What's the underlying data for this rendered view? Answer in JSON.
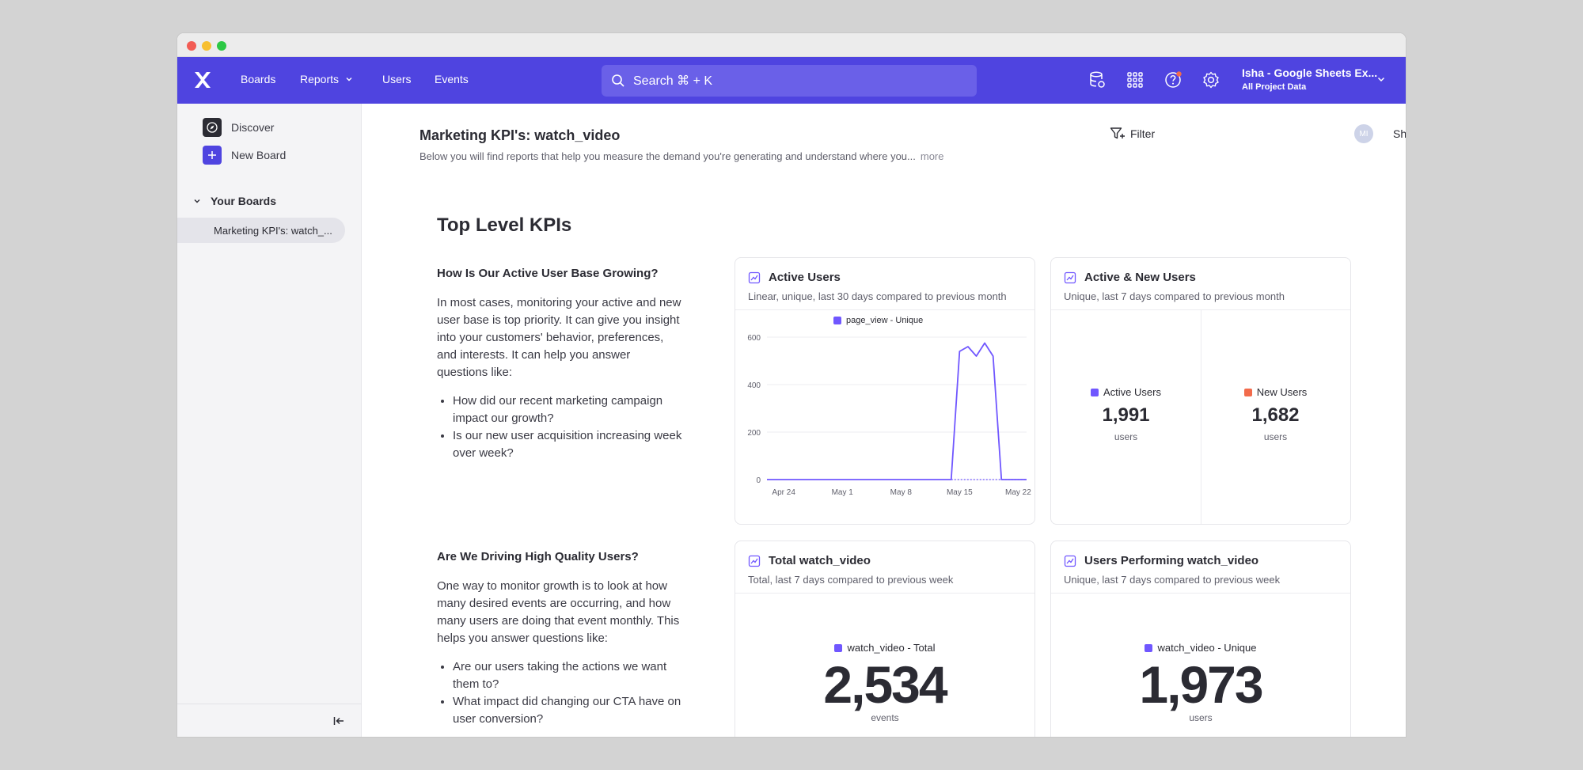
{
  "colors": {
    "brand": "#4f44e0",
    "series_purple": "#7057ff",
    "series_orange": "#f26b4b"
  },
  "nav": {
    "items": [
      {
        "label": "Boards"
      },
      {
        "label": "Reports"
      },
      {
        "label": "Users"
      },
      {
        "label": "Events"
      }
    ],
    "search_placeholder": "Search ⌘ + K",
    "project_name": "Isha - Google Sheets Ex...",
    "project_sub": "All Project Data"
  },
  "sidebar": {
    "discover": "Discover",
    "new_board": "New Board",
    "section": "Your Boards",
    "board_item": "Marketing KPI's: watch_..."
  },
  "board": {
    "title": "Marketing KPI's: watch_video",
    "description": "Below you will find reports that help you measure the demand you're generating and understand where you...",
    "more": "more",
    "filter": "Filter",
    "avatar_initials": "MI",
    "share": "Share"
  },
  "section_title": "Top Level KPIs",
  "text_blocks": [
    {
      "heading": "How Is Our Active User Base Growing?",
      "paragraph": "In most cases, monitoring your active and new user base is top priority. It can give you insight into your customers' behavior, preferences, and interests. It can help you answer questions like:",
      "bullets": [
        "How did our recent marketing campaign impact our growth?",
        "Is our new user acquisition increasing week over week?"
      ]
    },
    {
      "heading": "Are We Driving High Quality Users?",
      "paragraph": "One way to monitor growth is to look at how many desired events are occurring, and how many users are doing that event monthly. This helps you answer questions like:",
      "bullets": [
        "Are our users taking the actions we want them to?",
        "What impact did changing our CTA have on user conversion?"
      ]
    }
  ],
  "cards": {
    "active_users": {
      "title": "Active Users",
      "subtitle": "Linear, unique, last 30 days compared to previous month"
    },
    "active_new": {
      "title": "Active & New Users",
      "subtitle": "Unique, last 7 days compared to previous month",
      "metrics": [
        {
          "label": "Active Users",
          "value": "1,991",
          "unit": "users"
        },
        {
          "label": "New Users",
          "value": "1,682",
          "unit": "users"
        }
      ]
    },
    "total_watch": {
      "title": "Total watch_video",
      "subtitle": "Total, last 7 days compared to previous week",
      "legend": "watch_video - Total",
      "value": "2,534",
      "unit": "events"
    },
    "users_performing": {
      "title": "Users Performing watch_video",
      "subtitle": "Unique, last 7 days compared to previous week",
      "legend": "watch_video - Unique",
      "value": "1,973",
      "unit": "users"
    }
  },
  "chart_data": {
    "type": "line",
    "title": "",
    "xlabel": "",
    "ylabel": "",
    "ylim": [
      0,
      600
    ],
    "y_ticks": [
      "0",
      "200",
      "400",
      "600"
    ],
    "x_tick_labels": [
      "Apr 24",
      "May 1",
      "May 8",
      "May 15",
      "May 22"
    ],
    "grid": true,
    "legend_position": "top-center",
    "series": [
      {
        "name": "page_view - Unique",
        "x": [
          "Apr 22",
          "Apr 23",
          "Apr 24",
          "Apr 25",
          "Apr 26",
          "Apr 27",
          "Apr 28",
          "Apr 29",
          "Apr 30",
          "May 1",
          "May 2",
          "May 3",
          "May 4",
          "May 5",
          "May 6",
          "May 7",
          "May 8",
          "May 9",
          "May 10",
          "May 11",
          "May 12",
          "May 13",
          "May 14",
          "May 15",
          "May 16",
          "May 17",
          "May 18",
          "May 19",
          "May 20",
          "May 21",
          "May 22",
          "May 23"
        ],
        "values": [
          0,
          0,
          0,
          0,
          0,
          0,
          0,
          0,
          0,
          0,
          0,
          0,
          0,
          0,
          0,
          0,
          0,
          0,
          0,
          0,
          0,
          0,
          0,
          540,
          560,
          520,
          575,
          520,
          0,
          0,
          0,
          0
        ]
      }
    ]
  }
}
